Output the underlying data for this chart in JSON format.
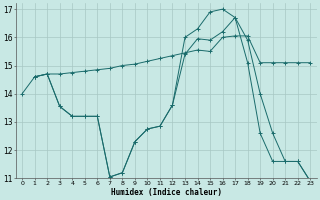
{
  "xlabel": "Humidex (Indice chaleur)",
  "bg_color": "#c8e8e4",
  "line_color": "#1a6b6b",
  "xlim": [
    -0.5,
    23.5
  ],
  "ylim": [
    11,
    17.2
  ],
  "xticks": [
    0,
    1,
    2,
    3,
    4,
    5,
    6,
    7,
    8,
    9,
    10,
    11,
    12,
    13,
    14,
    15,
    16,
    17,
    18,
    19,
    20,
    21,
    22,
    23
  ],
  "yticks": [
    11,
    12,
    13,
    14,
    15,
    16,
    17
  ],
  "line1_x": [
    0,
    1,
    2,
    3,
    4,
    5,
    6,
    7,
    8,
    9,
    10,
    11,
    12,
    13,
    14,
    15,
    16,
    17,
    18,
    19,
    20,
    21,
    22,
    23
  ],
  "line1_y": [
    14.0,
    14.6,
    14.7,
    14.7,
    14.75,
    14.8,
    14.85,
    14.9,
    15.0,
    15.05,
    15.15,
    15.25,
    15.35,
    15.45,
    15.55,
    15.5,
    16.0,
    16.05,
    16.05,
    15.1,
    15.1,
    15.1,
    15.1,
    15.1
  ],
  "line2_x": [
    1,
    2,
    3,
    4,
    5,
    6,
    7,
    8,
    9,
    10,
    11,
    12,
    13,
    14,
    15,
    16,
    17,
    18,
    19,
    20,
    21,
    22,
    23
  ],
  "line2_y": [
    14.6,
    14.7,
    13.55,
    13.2,
    13.2,
    13.2,
    11.05,
    11.2,
    12.3,
    12.75,
    12.85,
    13.6,
    16.0,
    16.3,
    16.9,
    17.0,
    16.7,
    15.1,
    12.6,
    11.6,
    11.6,
    11.6,
    10.9
  ],
  "line3_x": [
    1,
    2,
    3,
    4,
    5,
    6,
    7,
    8,
    9,
    10,
    11,
    12,
    13,
    14,
    15,
    16,
    17,
    18,
    19,
    20,
    21,
    22,
    23
  ],
  "line3_y": [
    14.6,
    14.7,
    13.55,
    13.2,
    13.2,
    13.2,
    11.05,
    11.2,
    12.3,
    12.75,
    12.85,
    13.6,
    15.4,
    15.95,
    15.9,
    16.2,
    16.7,
    15.9,
    14.0,
    12.6,
    11.6,
    11.6,
    10.9
  ]
}
